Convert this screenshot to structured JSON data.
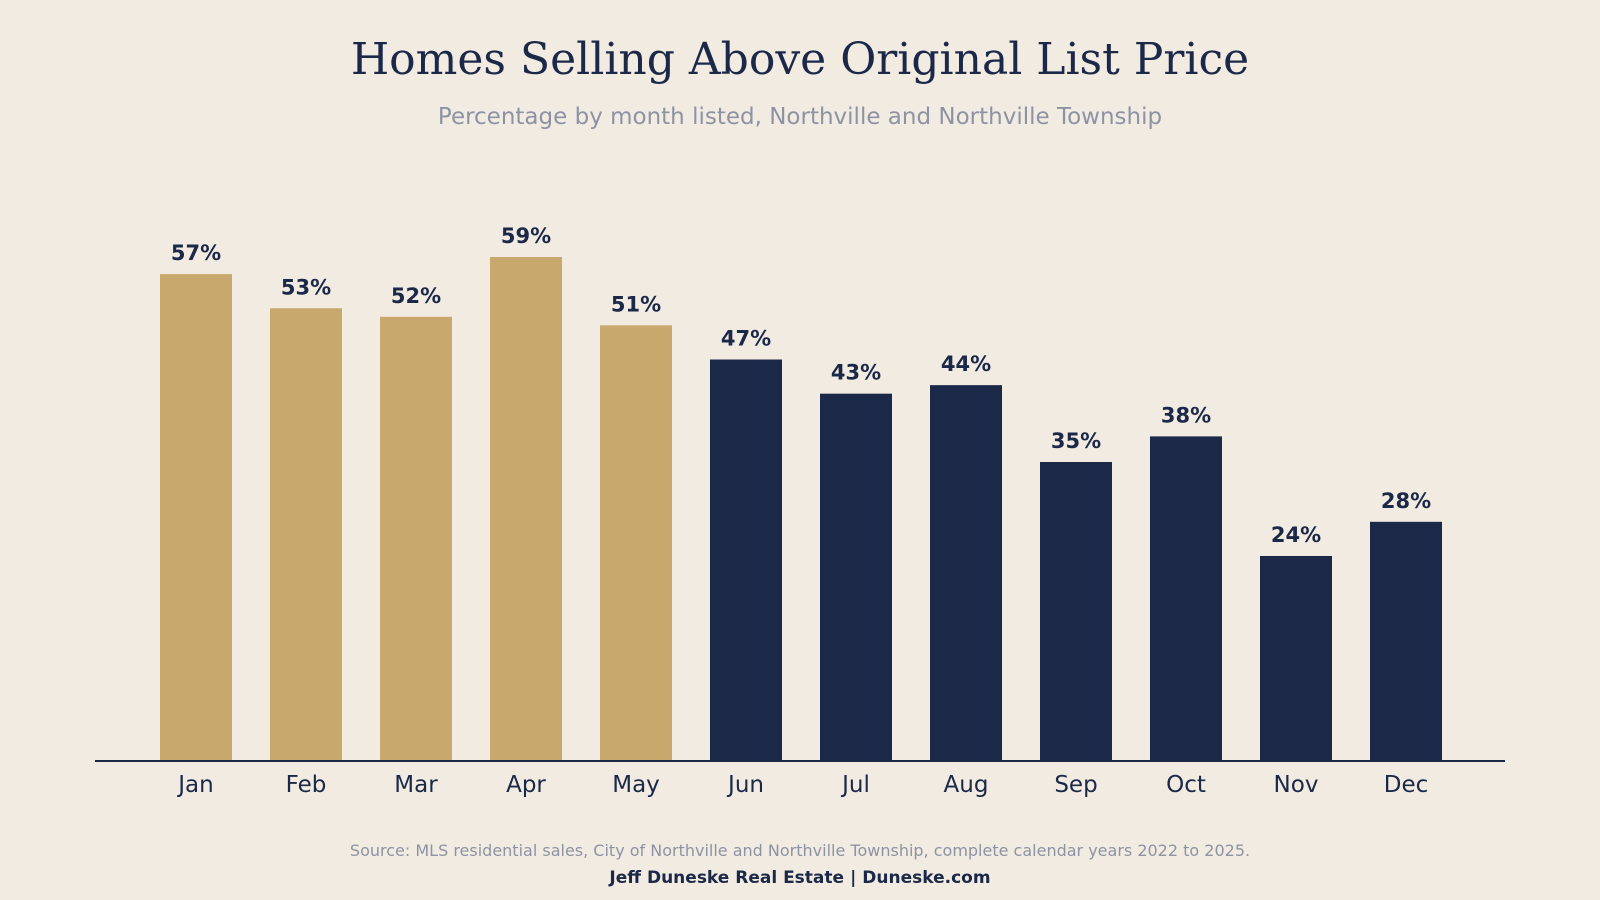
{
  "colors": {
    "background": "#f2ebe2",
    "highlight": "#c8a86d",
    "primary": "#1b2848",
    "muted": "#8d93a3"
  },
  "chart_data": {
    "type": "bar",
    "title": "Homes Selling Above Original List Price",
    "subtitle": "Percentage by month listed, Northville and Northville Township",
    "categories": [
      "Jan",
      "Feb",
      "Mar",
      "Apr",
      "May",
      "Jun",
      "Jul",
      "Aug",
      "Sep",
      "Oct",
      "Nov",
      "Dec"
    ],
    "values": [
      57,
      53,
      52,
      59,
      51,
      47,
      43,
      44,
      35,
      38,
      24,
      28
    ],
    "data_labels": [
      "57%",
      "53%",
      "52%",
      "59%",
      "51%",
      "47%",
      "43%",
      "44%",
      "35%",
      "38%",
      "24%",
      "28%"
    ],
    "bar_colors": [
      "#c8a86d",
      "#c8a86d",
      "#c8a86d",
      "#c8a86d",
      "#c8a86d",
      "#1b2848",
      "#1b2848",
      "#1b2848",
      "#1b2848",
      "#1b2848",
      "#1b2848",
      "#1b2848"
    ],
    "ylim": [
      0,
      59
    ],
    "grid": false,
    "xlabel": "",
    "ylabel": ""
  },
  "source_text": "Source: MLS residential sales, City of Northville and Northville Township, complete calendar years 2022 to 2025.",
  "footer": {
    "brand": "Jeff Duneske Real Estate",
    "separator": "|",
    "website": "Duneske.com"
  }
}
